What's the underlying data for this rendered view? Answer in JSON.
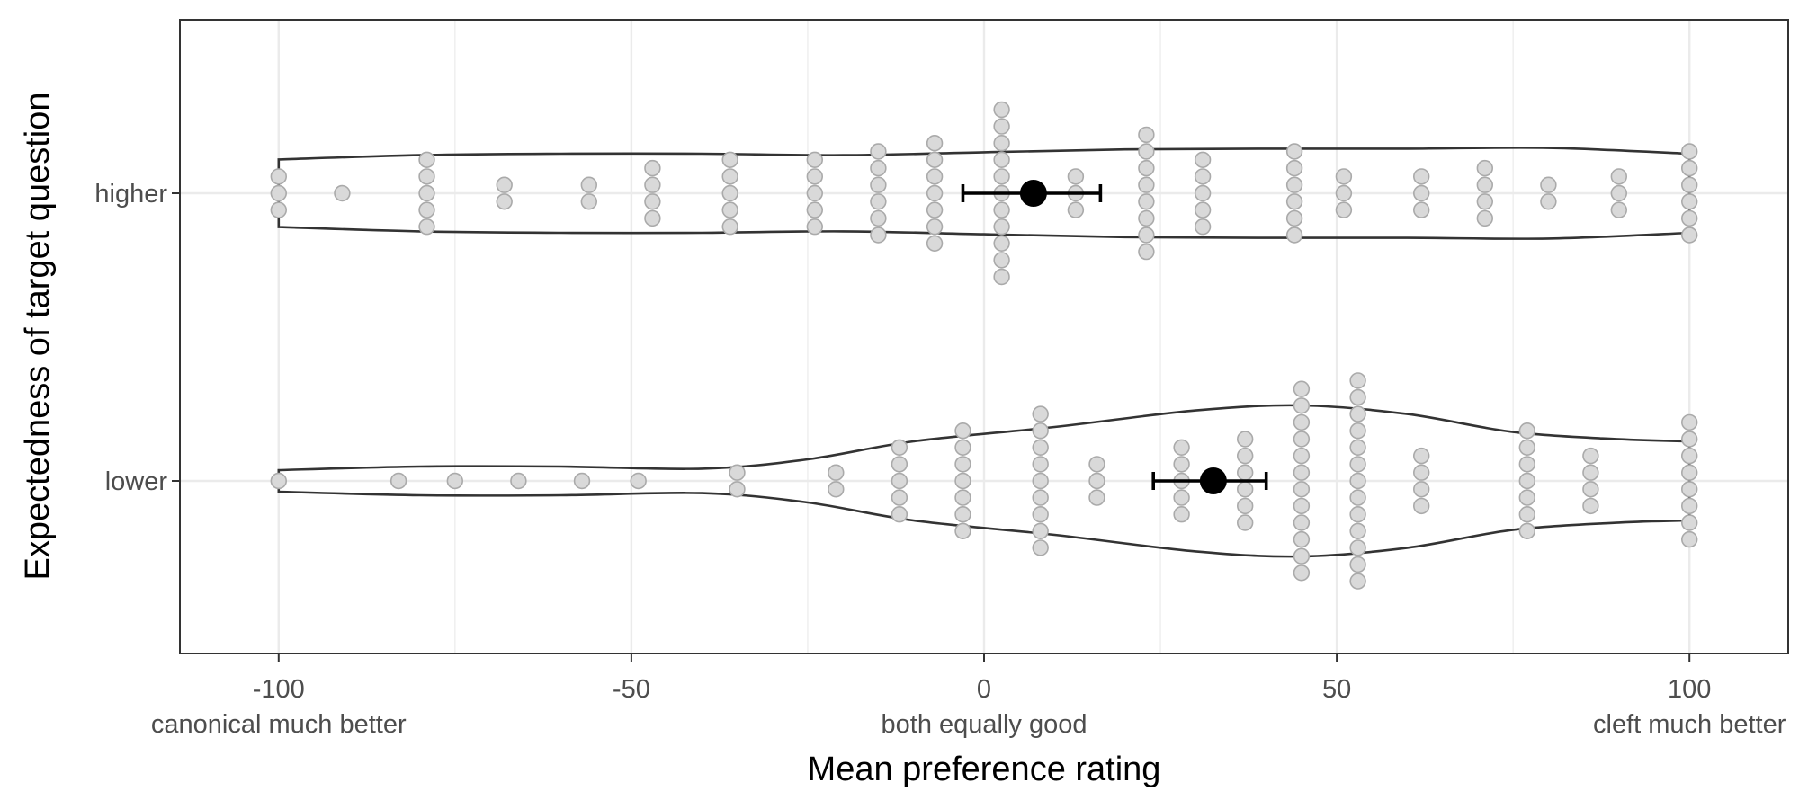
{
  "chart_data": {
    "type": "scatter",
    "subtype": "violin-dotplot-with-mean-errorbar",
    "xlabel": "Mean preference rating",
    "ylabel": "Expectedness of target question",
    "xlim": [
      -114,
      114
    ],
    "x_ticks": [
      {
        "value": -100,
        "label": "-100",
        "sublabel": "canonical much better"
      },
      {
        "value": -50,
        "label": "-50",
        "sublabel": ""
      },
      {
        "value": 0,
        "label": "0",
        "sublabel": "both equally good"
      },
      {
        "value": 50,
        "label": "50",
        "sublabel": ""
      },
      {
        "value": 100,
        "label": "100",
        "sublabel": "cleft much better"
      }
    ],
    "categories": [
      "higher",
      "lower"
    ],
    "grid": true,
    "colors": {
      "points": "#d9d9d9",
      "point_stroke": "#aaaaaa",
      "violin": "#333333",
      "mean": "#000000",
      "grid": "#ebebeb"
    },
    "series": [
      {
        "name": "higher",
        "mean": 7,
        "ci": [
          -3,
          16.5
        ],
        "dots": [
          [
            -100,
            3
          ],
          [
            -91,
            1
          ],
          [
            -79,
            5
          ],
          [
            -68,
            2
          ],
          [
            -56,
            2
          ],
          [
            -47,
            4
          ],
          [
            -36,
            5
          ],
          [
            -24,
            5
          ],
          [
            -15,
            6
          ],
          [
            -7,
            7
          ],
          [
            2.5,
            11
          ],
          [
            13,
            3
          ],
          [
            23,
            8
          ],
          [
            31,
            5
          ],
          [
            44,
            6
          ],
          [
            51,
            3
          ],
          [
            62,
            3
          ],
          [
            71,
            4
          ],
          [
            80,
            2
          ],
          [
            90,
            3
          ],
          [
            100,
            6
          ]
        ],
        "violin": [
          [
            -100,
            0.47
          ],
          [
            -80,
            0.53
          ],
          [
            -60,
            0.55
          ],
          [
            -40,
            0.55
          ],
          [
            -20,
            0.53
          ],
          [
            0,
            0.57
          ],
          [
            20,
            0.61
          ],
          [
            40,
            0.62
          ],
          [
            60,
            0.62
          ],
          [
            80,
            0.63
          ],
          [
            100,
            0.55
          ]
        ]
      },
      {
        "name": "lower",
        "mean": 32.5,
        "ci": [
          24,
          40
        ],
        "dots": [
          [
            -100,
            1
          ],
          [
            -83,
            1
          ],
          [
            -75,
            1
          ],
          [
            -66,
            1
          ],
          [
            -57,
            1
          ],
          [
            -49,
            1
          ],
          [
            -35,
            2
          ],
          [
            -21,
            2
          ],
          [
            -12,
            5
          ],
          [
            -3,
            7
          ],
          [
            8,
            9
          ],
          [
            16,
            3
          ],
          [
            28,
            5
          ],
          [
            37,
            6
          ],
          [
            45,
            12
          ],
          [
            53,
            13
          ],
          [
            62,
            4
          ],
          [
            77,
            7
          ],
          [
            86,
            4
          ],
          [
            100,
            8
          ]
        ],
        "violin": [
          [
            -100,
            0.15
          ],
          [
            -80,
            0.2
          ],
          [
            -60,
            0.2
          ],
          [
            -40,
            0.17
          ],
          [
            -25,
            0.3
          ],
          [
            -10,
            0.55
          ],
          [
            10,
            0.75
          ],
          [
            30,
            0.98
          ],
          [
            45,
            1.05
          ],
          [
            60,
            0.93
          ],
          [
            75,
            0.68
          ],
          [
            90,
            0.58
          ],
          [
            100,
            0.55
          ]
        ]
      }
    ]
  }
}
